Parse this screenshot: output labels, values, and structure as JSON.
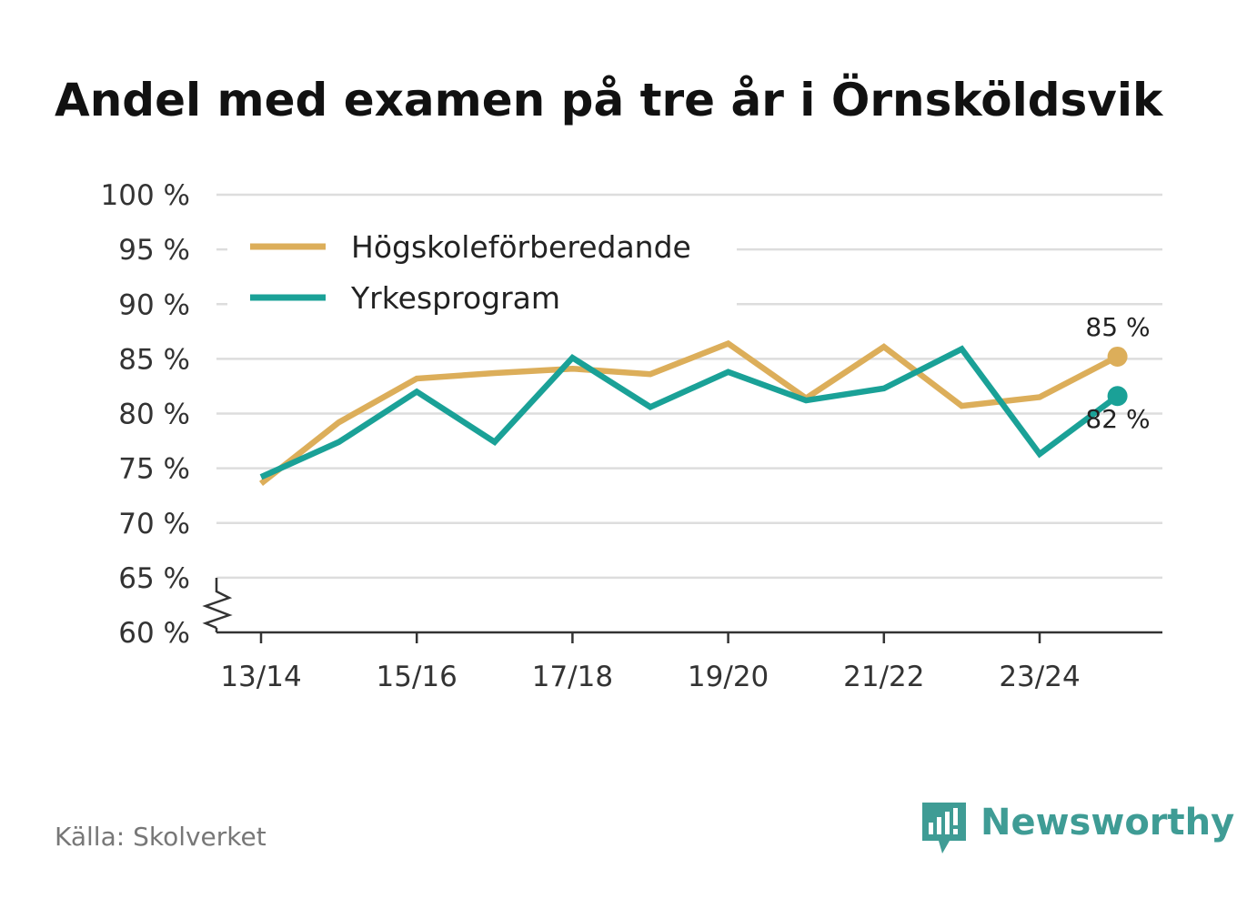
{
  "chart_data": {
    "type": "line",
    "title": "Andel med examen på tre år i Örnsköldsvik",
    "xlabel": "",
    "ylabel": "",
    "x": [
      "13/14",
      "14/15",
      "15/16",
      "16/17",
      "17/18",
      "18/19",
      "19/20",
      "20/21",
      "21/22",
      "22/23",
      "23/24",
      "24/25"
    ],
    "x_tick_labels": [
      "13/14",
      "15/16",
      "17/18",
      "19/20",
      "21/22",
      "23/24"
    ],
    "ylim": [
      60,
      100
    ],
    "y_ticks": [
      60,
      65,
      70,
      75,
      80,
      85,
      90,
      95,
      100
    ],
    "y_tick_labels": [
      "60 %",
      "65 %",
      "70 %",
      "75 %",
      "80 %",
      "85 %",
      "90 %",
      "95 %",
      "100 %"
    ],
    "axis_break": true,
    "grid": true,
    "legend_position": "top-left",
    "series": [
      {
        "name": "Högskoleförberedande",
        "color": "#dcae5a",
        "values": [
          73.6,
          79.2,
          83.2,
          83.7,
          84.1,
          83.6,
          86.4,
          81.4,
          86.1,
          80.7,
          81.5,
          85.2
        ],
        "end_label": "85 %"
      },
      {
        "name": "Yrkesprogram",
        "color": "#1aa197",
        "values": [
          74.2,
          77.4,
          82.0,
          77.4,
          85.1,
          80.6,
          83.8,
          81.2,
          82.3,
          85.9,
          76.3,
          81.6
        ],
        "end_label": "82 %"
      }
    ]
  },
  "source": "Källa: Skolverket",
  "brand": {
    "name": "Newsworthy",
    "color": "#3f9c95"
  },
  "colors": {
    "grid": "#dddddd",
    "axis": "#333333"
  }
}
